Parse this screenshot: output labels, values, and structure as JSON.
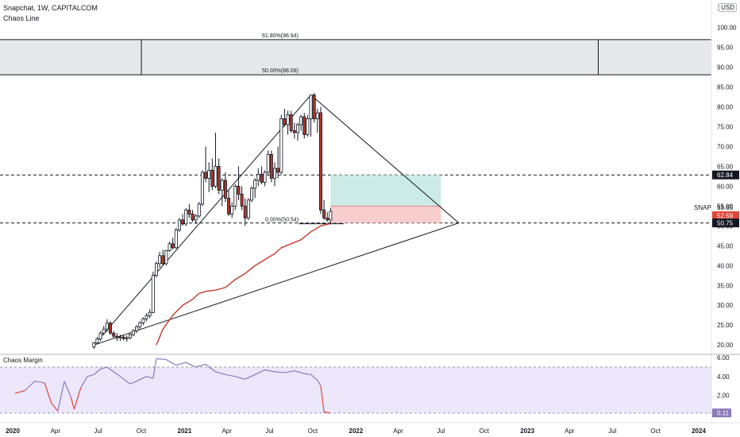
{
  "header": {
    "title": "Snapchat, 1W, CAPITALCOM",
    "indicator": "Chaos Line",
    "currency": "USD"
  },
  "colors": {
    "up": "#ffffff",
    "down": "#b23a2b",
    "chaos_line": "#c0392b",
    "fib_zone": "#e7e8eb",
    "target_zone": "#bfe6e0",
    "stop_zone": "#f7c8c8",
    "osc_fill": "#ede7fb",
    "osc_line": "#8a7ab8",
    "osc_low": "#e0453a",
    "marker_dark": "#131722",
    "marker_red": "#e0453a"
  },
  "chart_data": [
    {
      "type": "candlestick",
      "title": "Snapchat, 1W, CAPITALCOM",
      "series_label": "SNAP",
      "y_axis_ticks": [
        "20.00",
        "25.00",
        "30.00",
        "35.00",
        "40.00",
        "45.00",
        "50.00",
        "55.00",
        "60.00",
        "65.00",
        "70.00",
        "75.00",
        "80.00",
        "85.00",
        "90.00",
        "95.00",
        "100.00",
        "105.00"
      ],
      "ylim": [
        20,
        105
      ],
      "x_axis_ticks": [
        "2020",
        "Apr",
        "Jul",
        "Oct",
        "2021",
        "Apr",
        "Jul",
        "Oct",
        "2022",
        "Apr",
        "Jul",
        "Oct",
        "2023",
        "Apr",
        "Jul",
        "Oct",
        "2024"
      ],
      "x_tick_dates": [
        "2020-01-01",
        "2020-04-01",
        "2020-07-01",
        "2020-10-01",
        "2021-01-01",
        "2021-04-01",
        "2021-07-01",
        "2021-10-01",
        "2022-01-01",
        "2022-04-01",
        "2022-07-01",
        "2022-10-01",
        "2023-01-01",
        "2023-04-01",
        "2023-07-01",
        "2023-10-01",
        "2024-01-01"
      ],
      "candles": [
        [
          "2020-06-22",
          19.5,
          20.8,
          19.0,
          20.5
        ],
        [
          "2020-06-29",
          20.5,
          22.0,
          20.2,
          21.5
        ],
        [
          "2020-07-06",
          21.5,
          23.5,
          21.0,
          23.0
        ],
        [
          "2020-07-13",
          23.0,
          24.8,
          22.5,
          24.0
        ],
        [
          "2020-07-20",
          24.0,
          26.5,
          23.2,
          25.5
        ],
        [
          "2020-07-27",
          25.5,
          26.0,
          22.5,
          23.0
        ],
        [
          "2020-08-03",
          23.0,
          23.5,
          21.8,
          22.2
        ],
        [
          "2020-08-10",
          22.2,
          23.0,
          21.0,
          21.8
        ],
        [
          "2020-08-17",
          21.8,
          22.6,
          21.0,
          22.0
        ],
        [
          "2020-08-24",
          22.0,
          22.6,
          21.2,
          21.6
        ],
        [
          "2020-08-31",
          21.6,
          22.4,
          20.8,
          21.8
        ],
        [
          "2020-09-07",
          21.8,
          23.0,
          21.4,
          22.6
        ],
        [
          "2020-09-14",
          22.6,
          24.0,
          22.2,
          23.6
        ],
        [
          "2020-09-21",
          23.6,
          25.0,
          23.0,
          24.6
        ],
        [
          "2020-09-28",
          24.6,
          26.0,
          24.0,
          25.6
        ],
        [
          "2020-10-05",
          25.6,
          27.0,
          25.0,
          26.6
        ],
        [
          "2020-10-12",
          26.6,
          28.0,
          26.0,
          27.4
        ],
        [
          "2020-10-19",
          27.4,
          29.0,
          26.8,
          28.2
        ],
        [
          "2020-10-26",
          28.2,
          38.5,
          28.0,
          37.5
        ],
        [
          "2020-11-02",
          37.5,
          41.0,
          37.0,
          40.5
        ],
        [
          "2020-11-09",
          40.5,
          43.5,
          39.5,
          42.5
        ],
        [
          "2020-11-16",
          42.5,
          44.0,
          40.0,
          40.5
        ],
        [
          "2020-11-23",
          40.5,
          44.0,
          40.0,
          43.8
        ],
        [
          "2020-11-30",
          43.8,
          46.0,
          43.5,
          45.5
        ],
        [
          "2020-12-07",
          45.5,
          47.0,
          44.0,
          44.5
        ],
        [
          "2020-12-14",
          44.5,
          49.5,
          44.2,
          49.0
        ],
        [
          "2020-12-21",
          49.0,
          52.0,
          48.5,
          51.5
        ],
        [
          "2020-12-28",
          51.5,
          53.0,
          50.0,
          50.5
        ],
        [
          "2021-01-04",
          50.5,
          54.5,
          50.0,
          54.0
        ],
        [
          "2021-01-11",
          54.0,
          55.5,
          52.0,
          53.0
        ],
        [
          "2021-01-18",
          53.0,
          54.0,
          51.0,
          51.5
        ],
        [
          "2021-01-25",
          51.5,
          53.0,
          50.5,
          52.5
        ],
        [
          "2021-02-01",
          52.5,
          56.0,
          52.0,
          55.5
        ],
        [
          "2021-02-08",
          55.5,
          64.0,
          55.0,
          63.5
        ],
        [
          "2021-02-15",
          63.5,
          70.0,
          61.0,
          62.0
        ],
        [
          "2021-02-22",
          62.0,
          66.0,
          58.5,
          64.0
        ],
        [
          "2021-03-01",
          64.0,
          67.0,
          59.0,
          60.0
        ],
        [
          "2021-03-08",
          60.0,
          73.5,
          59.5,
          65.0
        ],
        [
          "2021-03-15",
          65.0,
          67.0,
          58.0,
          59.0
        ],
        [
          "2021-03-22",
          59.0,
          62.0,
          55.0,
          61.5
        ],
        [
          "2021-03-29",
          61.5,
          63.5,
          56.0,
          57.0
        ],
        [
          "2021-04-05",
          57.0,
          59.0,
          52.5,
          53.0
        ],
        [
          "2021-04-12",
          53.0,
          56.0,
          52.0,
          55.0
        ],
        [
          "2021-04-19",
          55.0,
          60.5,
          54.0,
          60.0
        ],
        [
          "2021-04-26",
          60.0,
          65.0,
          56.5,
          58.0
        ],
        [
          "2021-05-03",
          58.0,
          60.0,
          54.0,
          55.0
        ],
        [
          "2021-05-10",
          55.0,
          57.0,
          50.0,
          52.0
        ],
        [
          "2021-05-17",
          52.0,
          57.0,
          51.5,
          56.5
        ],
        [
          "2021-05-24",
          56.5,
          60.0,
          56.0,
          59.5
        ],
        [
          "2021-05-31",
          59.5,
          62.0,
          57.0,
          61.5
        ],
        [
          "2021-06-07",
          61.5,
          64.5,
          60.0,
          63.0
        ],
        [
          "2021-06-14",
          63.0,
          65.0,
          60.5,
          61.0
        ],
        [
          "2021-06-21",
          61.0,
          64.0,
          60.0,
          63.5
        ],
        [
          "2021-06-28",
          63.5,
          69.0,
          63.0,
          68.0
        ],
        [
          "2021-07-05",
          68.0,
          69.0,
          61.0,
          62.0
        ],
        [
          "2021-07-12",
          62.0,
          66.0,
          60.0,
          64.5
        ],
        [
          "2021-07-19",
          64.5,
          70.0,
          62.0,
          63.5
        ],
        [
          "2021-07-26",
          63.5,
          78.0,
          63.0,
          77.0
        ],
        [
          "2021-08-02",
          77.0,
          79.5,
          75.0,
          75.5
        ],
        [
          "2021-08-09",
          75.5,
          79.0,
          73.0,
          78.0
        ],
        [
          "2021-08-16",
          78.0,
          79.0,
          73.5,
          74.0
        ],
        [
          "2021-08-23",
          74.0,
          76.0,
          72.0,
          73.5
        ],
        [
          "2021-08-30",
          73.5,
          76.0,
          71.5,
          75.5
        ],
        [
          "2021-09-06",
          75.5,
          78.0,
          74.0,
          77.5
        ],
        [
          "2021-09-13",
          77.5,
          78.5,
          72.0,
          73.0
        ],
        [
          "2021-09-20",
          73.0,
          78.0,
          72.5,
          77.0
        ],
        [
          "2021-09-27",
          77.0,
          83.0,
          72.5,
          83.0
        ],
        [
          "2021-10-04",
          83.0,
          83.5,
          76.0,
          77.0
        ],
        [
          "2021-10-11",
          77.0,
          79.5,
          73.5,
          78.5
        ],
        [
          "2021-10-18",
          78.5,
          80.0,
          53.0,
          54.0
        ],
        [
          "2021-10-25",
          54.0,
          56.5,
          51.5,
          52.0
        ],
        [
          "2021-11-01",
          52.0,
          53.5,
          51.0,
          51.5
        ],
        [
          "2021-11-08",
          51.5,
          54.5,
          50.5,
          53.65
        ]
      ],
      "chaos_line": [
        [
          "2020-11-02",
          20.0
        ],
        [
          "2020-11-16",
          24.0
        ],
        [
          "2020-12-07",
          27.5
        ],
        [
          "2020-12-28",
          30.0
        ],
        [
          "2021-01-18",
          31.5
        ],
        [
          "2021-02-01",
          33.0
        ],
        [
          "2021-02-15",
          33.5
        ],
        [
          "2021-03-08",
          33.8
        ],
        [
          "2021-03-29",
          34.5
        ],
        [
          "2021-04-19",
          36.5
        ],
        [
          "2021-05-10",
          38.0
        ],
        [
          "2021-05-31",
          40.0
        ],
        [
          "2021-06-21",
          41.5
        ],
        [
          "2021-07-12",
          43.0
        ],
        [
          "2021-07-26",
          44.5
        ],
        [
          "2021-08-16",
          45.5
        ],
        [
          "2021-09-06",
          46.5
        ],
        [
          "2021-09-27",
          48.5
        ],
        [
          "2021-10-18",
          50.0
        ],
        [
          "2021-11-08",
          50.6
        ]
      ],
      "triangle": [
        [
          "2020-06-22",
          20.0
        ],
        [
          "2021-09-27",
          83.0
        ],
        [
          "2022-08-08",
          50.75
        ]
      ],
      "fib_levels": [
        {
          "label": "61.80%(96.94)",
          "value": 96.94
        },
        {
          "label": "50.00%(88.08)",
          "value": 88.08
        },
        {
          "label": "0.00%(50.54)",
          "value": 50.54
        }
      ],
      "fib_zone": {
        "start": "2020-10-01",
        "end": "2023-06-01"
      },
      "position": {
        "start": "2021-11-08",
        "end": "2022-07-01",
        "target": 62.84,
        "entry": 55.0,
        "stop": 50.75
      },
      "h_lines": [
        62.84,
        50.75
      ],
      "price_labels": [
        {
          "text": "62.84",
          "value": 62.84,
          "style": "dark"
        },
        {
          "text": "52.59",
          "value": 52.59,
          "style": "red"
        },
        {
          "text": "50.75",
          "value": 50.75,
          "style": "dark"
        }
      ],
      "last_price": {
        "symbol": "SNAP",
        "text": "53.65",
        "value": 53.65
      }
    },
    {
      "type": "line",
      "title": "Chaos Margin",
      "y_axis_ticks": [
        "2.00",
        "4.00",
        "6.00"
      ],
      "ylim": [
        0,
        6.2
      ],
      "band": [
        0.1,
        5.0
      ],
      "current_label": "0.11",
      "series": [
        {
          "name": "Chaos Margin",
          "points": [
            [
              "2020-01-06",
              2.2
            ],
            [
              "2020-01-27",
              2.5
            ],
            [
              "2020-02-17",
              3.5
            ],
            [
              "2020-03-09",
              3.3
            ],
            [
              "2020-03-23",
              1.2
            ],
            [
              "2020-04-06",
              0.3
            ],
            [
              "2020-04-20",
              3.5
            ],
            [
              "2020-05-04",
              1.8
            ],
            [
              "2020-05-11",
              0.5
            ],
            [
              "2020-05-25",
              2.8
            ],
            [
              "2020-06-08",
              4.0
            ],
            [
              "2020-06-22",
              4.2
            ],
            [
              "2020-07-06",
              4.8
            ],
            [
              "2020-07-20",
              5.0
            ],
            [
              "2020-08-03",
              4.5
            ],
            [
              "2020-08-17",
              4.0
            ],
            [
              "2020-09-07",
              3.2
            ],
            [
              "2020-09-21",
              3.5
            ],
            [
              "2020-10-12",
              4.0
            ],
            [
              "2020-10-26",
              3.8
            ],
            [
              "2020-11-02",
              5.9
            ],
            [
              "2020-11-23",
              5.8
            ],
            [
              "2020-12-14",
              5.2
            ],
            [
              "2021-01-04",
              5.5
            ],
            [
              "2021-01-25",
              5.0
            ],
            [
              "2021-02-15",
              5.3
            ],
            [
              "2021-03-08",
              4.5
            ],
            [
              "2021-03-29",
              4.2
            ],
            [
              "2021-04-19",
              4.0
            ],
            [
              "2021-05-10",
              3.7
            ],
            [
              "2021-05-31",
              4.2
            ],
            [
              "2021-06-21",
              4.7
            ],
            [
              "2021-07-12",
              4.5
            ],
            [
              "2021-08-02",
              4.4
            ],
            [
              "2021-08-23",
              4.6
            ],
            [
              "2021-09-13",
              4.3
            ],
            [
              "2021-09-27",
              4.2
            ],
            [
              "2021-10-11",
              3.6
            ],
            [
              "2021-10-18",
              3.0
            ],
            [
              "2021-10-25",
              0.2
            ],
            [
              "2021-11-08",
              0.11
            ]
          ]
        }
      ]
    }
  ]
}
